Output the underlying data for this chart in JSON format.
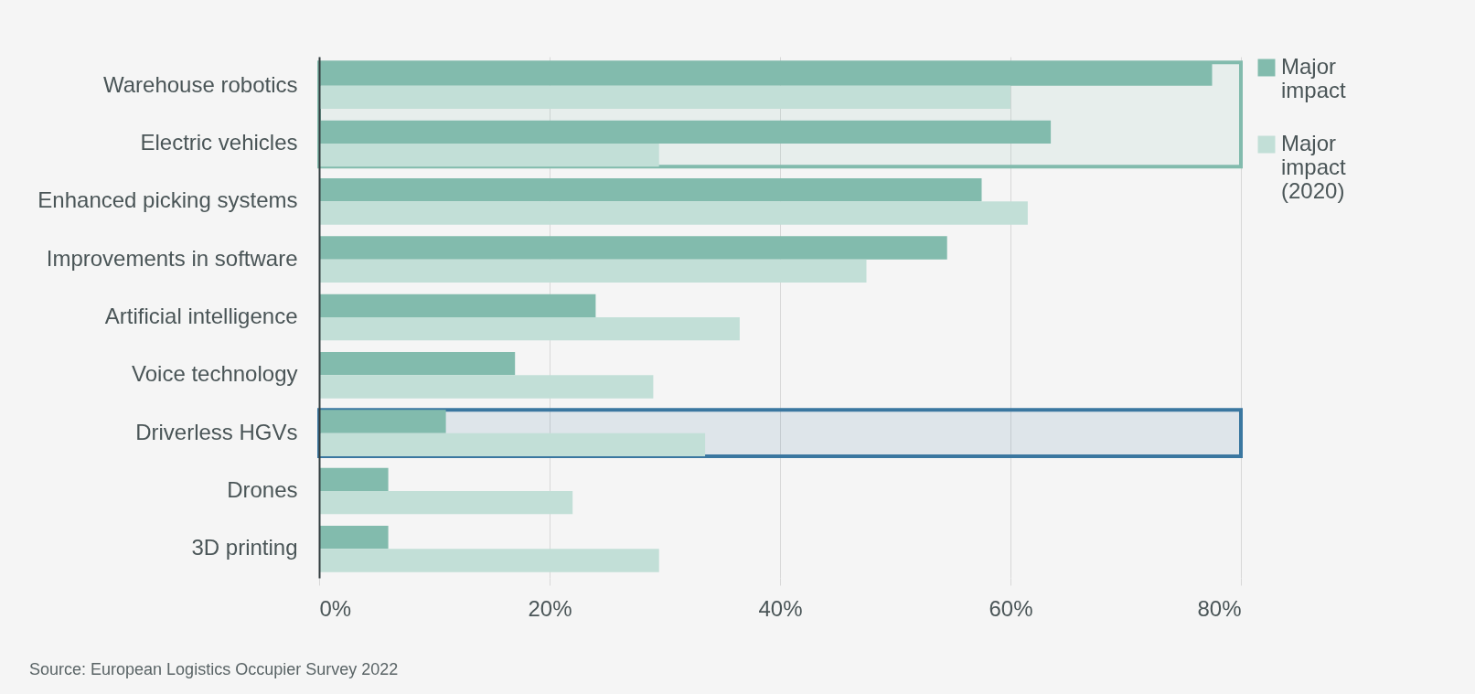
{
  "chart_data": {
    "type": "bar",
    "orientation": "horizontal",
    "categories": [
      "Warehouse robotics",
      "Electric vehicles",
      "Enhanced picking systems",
      "Improvements in software",
      "Artificial intelligence",
      "Voice technology",
      "Driverless HGVs",
      "Drones",
      "3D printing"
    ],
    "series": [
      {
        "name": "Major impact",
        "color": "#82bbad",
        "values": [
          77.5,
          63.5,
          57.5,
          54.5,
          24,
          17,
          11,
          6,
          6
        ]
      },
      {
        "name": "Major impact (2020)",
        "color": "#c2dfd7",
        "values": [
          60,
          29.5,
          61.5,
          47.5,
          36.5,
          29,
          33.5,
          22,
          29.5
        ]
      }
    ],
    "xlim": [
      0,
      80
    ],
    "xticks": [
      {
        "value": 0,
        "label": "0%"
      },
      {
        "value": 20,
        "label": "20%"
      },
      {
        "value": 40,
        "label": "40%"
      },
      {
        "value": 60,
        "label": "60%"
      },
      {
        "value": 80,
        "label": "80%"
      }
    ],
    "grid": "x",
    "legend": "right",
    "bands": [
      {
        "axis": "y",
        "from": "Warehouse robotics",
        "to": "Electric vehicles",
        "color": "#82bbad"
      },
      {
        "axis": "y",
        "from": "Driverless HGVs",
        "to": "Driverless HGVs",
        "color": "#3a77a0"
      }
    ],
    "annotations": [
      "Source: European Logistics Occupier Survey 2022"
    ]
  }
}
